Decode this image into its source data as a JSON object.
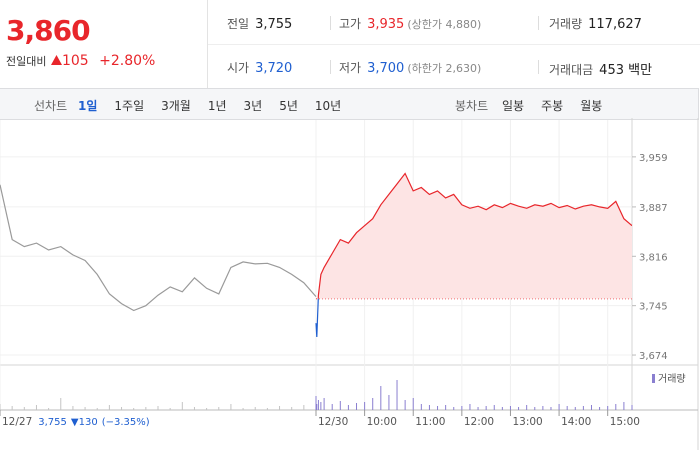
{
  "header": {
    "price": "3,860",
    "change_label": "전일대비",
    "change": "105",
    "change_rate": "+2.80%",
    "stats": [
      {
        "label": "전일",
        "value": "3,755"
      },
      {
        "label": "고가",
        "value": "3,935",
        "note": "(상한가 4,880)"
      },
      {
        "label": "거래량",
        "value": "117,627"
      },
      {
        "label": "시가",
        "value": "3,720"
      },
      {
        "label": "저가",
        "value": "3,700",
        "note": "(하한가 2,630)"
      },
      {
        "label": "거래대금",
        "value": "453 백만"
      }
    ]
  },
  "tabs": {
    "line_label": "선차트",
    "line": [
      "1일",
      "1주일",
      "3개월",
      "1년",
      "3년",
      "5년",
      "10년"
    ],
    "active": 0,
    "candle_label": "봉차트",
    "candle": [
      "일봉",
      "주봉",
      "월봉"
    ]
  },
  "chart_data": {
    "type": "line",
    "series": [
      {
        "color": "#9a9a9a",
        "x": [
          0,
          15,
          30,
          45,
          60,
          75,
          90,
          105,
          120,
          135,
          150,
          165,
          180,
          195,
          210,
          225,
          240,
          255,
          270,
          285,
          300,
          315,
          330,
          345,
          360,
          375,
          390
        ],
        "values": [
          3919,
          3840,
          3830,
          3835,
          3825,
          3830,
          3818,
          3810,
          3790,
          3762,
          3748,
          3738,
          3745,
          3760,
          3772,
          3765,
          3785,
          3770,
          3762,
          3800,
          3808,
          3805,
          3806,
          3800,
          3790,
          3778,
          3758
        ]
      },
      {
        "color": "#e8262b",
        "below_color": "#1f5fd0",
        "fill": "#fde4e4",
        "x": [
          390,
          391,
          393,
          396,
          400,
          410,
          420,
          430,
          440,
          450,
          460,
          470,
          480,
          490,
          500,
          510,
          520,
          530,
          540,
          550,
          560,
          570,
          580,
          590,
          600,
          610,
          620,
          630,
          640,
          650,
          660,
          670,
          680,
          690,
          700,
          710,
          720,
          730,
          740,
          750,
          760,
          770,
          780
        ],
        "values": [
          3720,
          3700,
          3760,
          3790,
          3800,
          3820,
          3840,
          3835,
          3850,
          3860,
          3870,
          3890,
          3905,
          3920,
          3935,
          3910,
          3915,
          3905,
          3910,
          3900,
          3905,
          3890,
          3885,
          3888,
          3883,
          3890,
          3886,
          3892,
          3888,
          3885,
          3890,
          3888,
          3892,
          3886,
          3889,
          3884,
          3888,
          3890,
          3887,
          3885,
          3895,
          3870,
          3860
        ]
      }
    ],
    "baseline": 3755,
    "xlim": [
      0,
      780
    ],
    "xticks": [
      {
        "value": 0,
        "label": "12/27"
      },
      {
        "value": 390,
        "label": "12/30"
      },
      {
        "value": 450,
        "label": "10:00"
      },
      {
        "value": 510,
        "label": "11:00"
      },
      {
        "value": 570,
        "label": "12:00"
      },
      {
        "value": 630,
        "label": "13:00"
      },
      {
        "value": 690,
        "label": "14:00"
      },
      {
        "value": 750,
        "label": "15:00"
      }
    ],
    "ylim": [
      3664,
      4012
    ],
    "yticks": [
      {
        "value": 3959,
        "label": "3,959"
      },
      {
        "value": 3887,
        "label": "3,887"
      },
      {
        "value": 3816,
        "label": "3,816"
      },
      {
        "value": 3745,
        "label": "3,745"
      },
      {
        "value": 3674,
        "label": "3,674"
      }
    ],
    "grid": true,
    "volume": {
      "name": "거래량",
      "legend_color": "#8a7fd0",
      "ylim": [
        0,
        40
      ],
      "series": [
        {
          "color": "#c4c4c4",
          "x": [
            0,
            15,
            30,
            45,
            60,
            75,
            90,
            105,
            120,
            135,
            150,
            165,
            180,
            195,
            210,
            225,
            240,
            255,
            270,
            285,
            300,
            315,
            330,
            345,
            360,
            375,
            390
          ],
          "values": [
            6,
            4,
            3,
            5,
            2,
            12,
            4,
            3,
            2,
            5,
            3,
            2,
            3,
            4,
            2,
            8,
            3,
            2,
            3,
            6,
            2,
            3,
            2,
            4,
            3,
            5,
            2
          ]
        },
        {
          "color": "#8a7fd0",
          "x": [
            390,
            391,
            393,
            396,
            400,
            410,
            420,
            430,
            440,
            450,
            460,
            470,
            480,
            490,
            500,
            510,
            520,
            530,
            540,
            550,
            560,
            570,
            580,
            590,
            600,
            610,
            620,
            630,
            640,
            650,
            660,
            670,
            680,
            690,
            700,
            710,
            720,
            730,
            740,
            750,
            760,
            770,
            780
          ],
          "values": [
            14,
            6,
            10,
            8,
            12,
            6,
            9,
            5,
            7,
            8,
            12,
            24,
            15,
            30,
            10,
            12,
            6,
            5,
            4,
            5,
            3,
            4,
            6,
            3,
            4,
            5,
            3,
            4,
            3,
            5,
            3,
            4,
            3,
            6,
            4,
            3,
            4,
            5,
            3,
            4,
            6,
            8,
            5
          ]
        }
      ]
    },
    "prev_day": {
      "close": "3,755",
      "change": "▼130",
      "rate": "(−3.35%)"
    }
  }
}
